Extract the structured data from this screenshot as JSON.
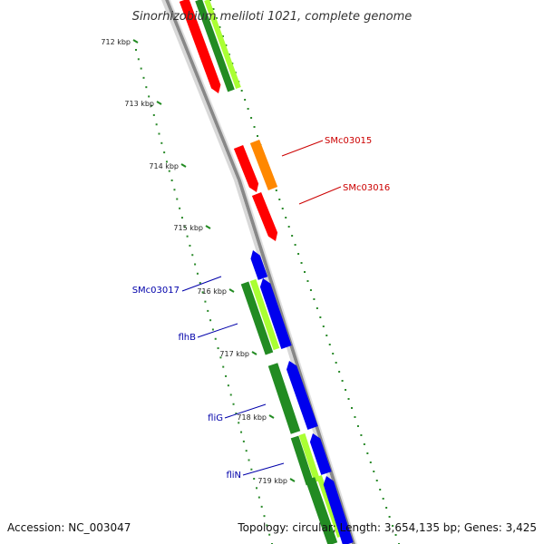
{
  "title": "Sinorhizobium meliloti 1021, complete genome",
  "footer": {
    "accession": "Accession: NC_003047",
    "summary": "Topology: circular; Length: 3,654,135 bp; Genes: 3,425"
  },
  "ticks": [
    "712 kbp",
    "713 kbp",
    "714 kbp",
    "715 kbp",
    "716 kbp",
    "717 kbp",
    "718 kbp",
    "719 kbp"
  ],
  "genes": {
    "smc03015": "SMc03015",
    "smc03016": "SMc03016",
    "smc03017": "SMc03017",
    "flhb": "flhB",
    "flig": "fliG",
    "flin": "fliN"
  },
  "colors": {
    "forward_feature": "#ff0000",
    "cds_orange": "#ff8800",
    "reverse_feature": "#0000ee",
    "dark_green": "#228b22",
    "light_green": "#aaff33",
    "backbone": "#888888",
    "label_red": "#cc0000",
    "label_blue": "#0000aa",
    "dots": "#2a8a2a"
  }
}
